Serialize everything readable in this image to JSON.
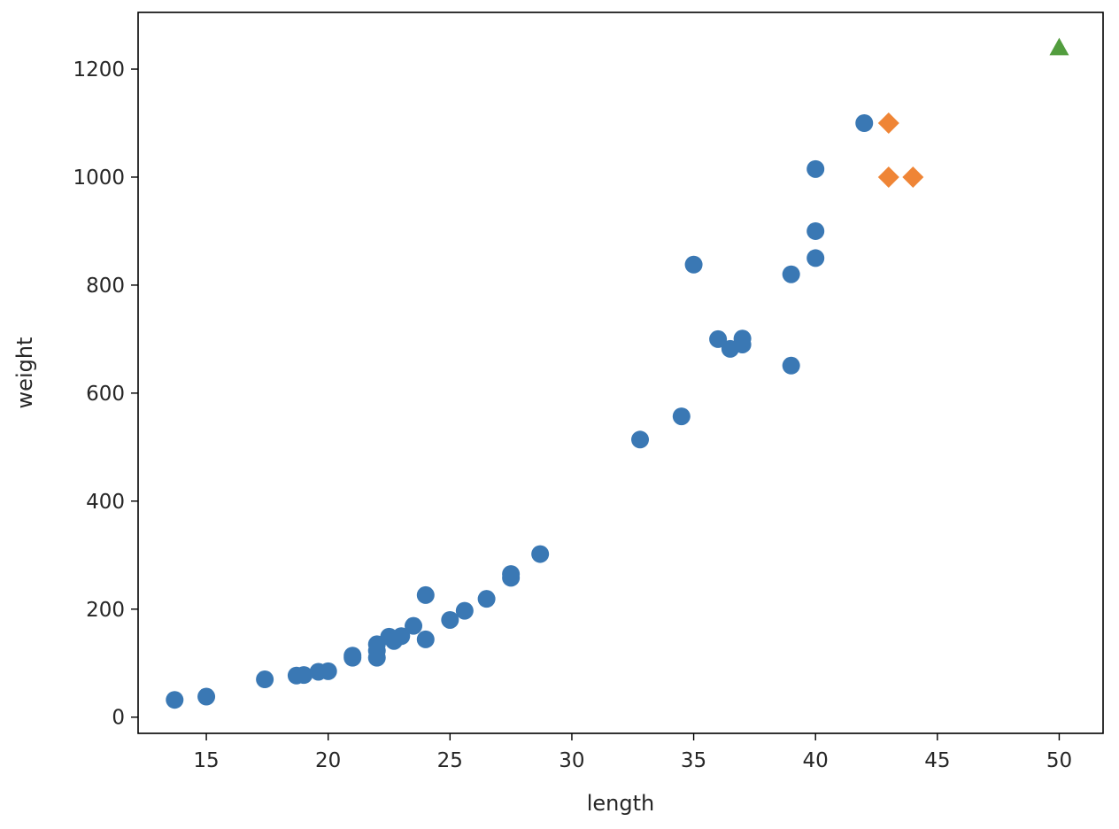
{
  "chart_data": {
    "type": "scatter",
    "title": "",
    "xlabel": "length",
    "ylabel": "weight",
    "xlim": [
      12.2,
      51.8
    ],
    "ylim": [
      -30.0,
      1305.0
    ],
    "xticks": [
      15,
      20,
      25,
      30,
      35,
      40,
      45,
      50
    ],
    "yticks": [
      0,
      200,
      400,
      600,
      800,
      1000,
      1200
    ],
    "grid": false,
    "legend": "none",
    "series": [
      {
        "marker": "circle",
        "color": "#3a78b4",
        "points": [
          [
            13.7,
            32
          ],
          [
            15.0,
            38
          ],
          [
            17.4,
            70
          ],
          [
            18.7,
            77
          ],
          [
            19.0,
            78
          ],
          [
            19.6,
            84
          ],
          [
            20.0,
            85
          ],
          [
            21.0,
            110
          ],
          [
            21.0,
            114
          ],
          [
            22.0,
            110
          ],
          [
            22.0,
            123
          ],
          [
            22.0,
            135
          ],
          [
            22.5,
            149
          ],
          [
            22.7,
            141
          ],
          [
            23.0,
            150
          ],
          [
            23.5,
            169
          ],
          [
            24.0,
            144
          ],
          [
            24.0,
            226
          ],
          [
            25.0,
            180
          ],
          [
            25.6,
            197
          ],
          [
            26.5,
            219
          ],
          [
            27.5,
            258
          ],
          [
            27.5,
            265
          ],
          [
            28.7,
            302
          ],
          [
            32.8,
            514
          ],
          [
            34.5,
            557
          ],
          [
            35.0,
            838
          ],
          [
            36.0,
            700
          ],
          [
            36.5,
            682
          ],
          [
            37.0,
            690
          ],
          [
            37.0,
            701
          ],
          [
            39.0,
            651
          ],
          [
            39.0,
            820
          ],
          [
            40.0,
            850
          ],
          [
            40.0,
            900
          ],
          [
            40.0,
            1015
          ],
          [
            42.0,
            1100
          ]
        ]
      },
      {
        "marker": "diamond",
        "color": "#ef8536",
        "points": [
          [
            43.0,
            1100
          ],
          [
            43.0,
            1000
          ],
          [
            44.0,
            1000
          ]
        ]
      },
      {
        "marker": "triangle",
        "color": "#529d3e",
        "points": [
          [
            50.0,
            1240
          ]
        ]
      }
    ]
  }
}
